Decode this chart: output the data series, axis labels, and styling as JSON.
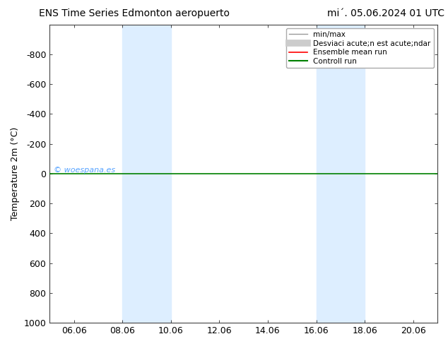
{
  "title_left": "ENS Time Series Edmonton aeropuerto",
  "title_right": "mi´. 05.06.2024 01 UTC",
  "ylabel": "Temperature 2m (°C)",
  "watermark": "© woespana.es",
  "xtick_labels": [
    "06.06",
    "08.06",
    "10.06",
    "12.06",
    "14.06",
    "16.06",
    "18.06",
    "20.06"
  ],
  "ylim_top": -1000,
  "ylim_bottom": 1000,
  "yticks": [
    -800,
    -600,
    -400,
    -200,
    0,
    200,
    400,
    600,
    800,
    1000
  ],
  "shaded_regions": [
    {
      "xmin": "08.06",
      "xmax": "10.06",
      "xmin_val": 3,
      "xmax_val": 5
    },
    {
      "xmin": "16.06",
      "xmax": "18.06",
      "xmin_val": 11,
      "xmax_val": 13
    }
  ],
  "shaded_color": "#ddeeff",
  "line_y": 0,
  "green_line_color": "#008000",
  "red_line_color": "#ff0000",
  "gray_line_color": "#999999",
  "light_gray_fill_color": "#cccccc",
  "legend_labels": [
    "min/max",
    "Desviaci acute;n est acute;ndar",
    "Ensemble mean run",
    "Controll run"
  ],
  "title_fontsize": 10,
  "tick_fontsize": 9,
  "ylabel_fontsize": 9,
  "watermark_color": "#4499ff",
  "background_color": "#ffffff",
  "xlim": [
    0,
    16
  ],
  "xtick_positions": [
    1,
    3,
    5,
    7,
    9,
    11,
    13,
    15
  ]
}
